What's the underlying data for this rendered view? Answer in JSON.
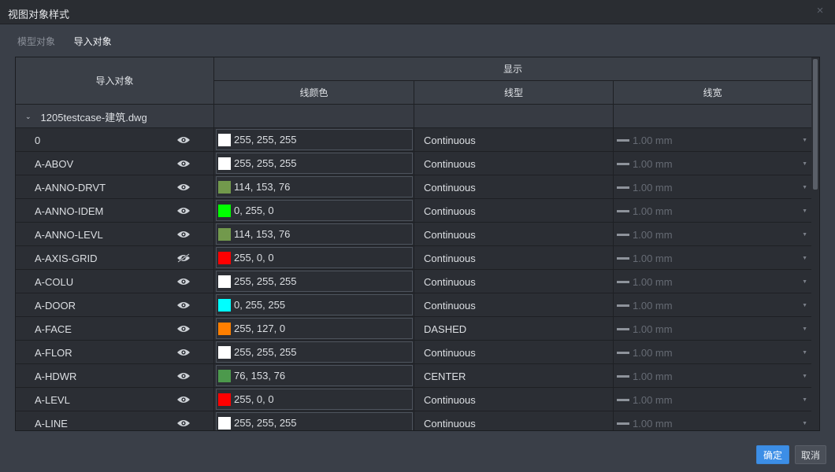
{
  "window": {
    "title": "视图对象样式",
    "close_label": "×"
  },
  "tabs": [
    {
      "label": "模型对象",
      "active": false
    },
    {
      "label": "导入对象",
      "active": true
    }
  ],
  "table": {
    "header_object": "导入对象",
    "header_display": "显示",
    "header_line_color": "线颜色",
    "header_line_type": "线型",
    "header_line_width": "线宽",
    "group": {
      "label": "1205testcase-建筑.dwg",
      "expanded": true
    },
    "rows": [
      {
        "name": "0",
        "visible": true,
        "color_text": "255, 255, 255",
        "color": "#ffffff",
        "linetype": "Continuous",
        "lineweight": "1.00 mm"
      },
      {
        "name": "A-ABOV",
        "visible": true,
        "color_text": "255, 255, 255",
        "color": "#ffffff",
        "linetype": "Continuous",
        "lineweight": "1.00 mm"
      },
      {
        "name": "A-ANNO-DRVT",
        "visible": true,
        "color_text": "114, 153, 76",
        "color": "#72994c",
        "linetype": "Continuous",
        "lineweight": "1.00 mm"
      },
      {
        "name": "A-ANNO-IDEM",
        "visible": true,
        "color_text": "0, 255, 0",
        "color": "#00ff00",
        "linetype": "Continuous",
        "lineweight": "1.00 mm"
      },
      {
        "name": "A-ANNO-LEVL",
        "visible": true,
        "color_text": "114, 153, 76",
        "color": "#72994c",
        "linetype": "Continuous",
        "lineweight": "1.00 mm"
      },
      {
        "name": "A-AXIS-GRID",
        "visible": false,
        "color_text": "255, 0, 0",
        "color": "#ff0000",
        "linetype": "Continuous",
        "lineweight": "1.00 mm"
      },
      {
        "name": "A-COLU",
        "visible": true,
        "color_text": "255, 255, 255",
        "color": "#ffffff",
        "linetype": "Continuous",
        "lineweight": "1.00 mm"
      },
      {
        "name": "A-DOOR",
        "visible": true,
        "color_text": "0, 255, 255",
        "color": "#00ffff",
        "linetype": "Continuous",
        "lineweight": "1.00 mm"
      },
      {
        "name": "A-FACE",
        "visible": true,
        "color_text": "255, 127, 0",
        "color": "#ff7f00",
        "linetype": "DASHED",
        "lineweight": "1.00 mm"
      },
      {
        "name": "A-FLOR",
        "visible": true,
        "color_text": "255, 255, 255",
        "color": "#ffffff",
        "linetype": "Continuous",
        "lineweight": "1.00 mm"
      },
      {
        "name": "A-HDWR",
        "visible": true,
        "color_text": "76, 153, 76",
        "color": "#4c994c",
        "linetype": "CENTER",
        "lineweight": "1.00 mm"
      },
      {
        "name": "A-LEVL",
        "visible": true,
        "color_text": "255, 0, 0",
        "color": "#ff0000",
        "linetype": "Continuous",
        "lineweight": "1.00 mm"
      },
      {
        "name": "A-LINE",
        "visible": true,
        "color_text": "255, 255, 255",
        "color": "#ffffff",
        "linetype": "Continuous",
        "lineweight": "1.00 mm"
      }
    ]
  },
  "buttons": {
    "ok": "确定",
    "cancel": "取消"
  },
  "colors": {
    "accent": "#3c8ee6",
    "background": "#3a3f48",
    "grid_bg": "#2b2e34"
  }
}
